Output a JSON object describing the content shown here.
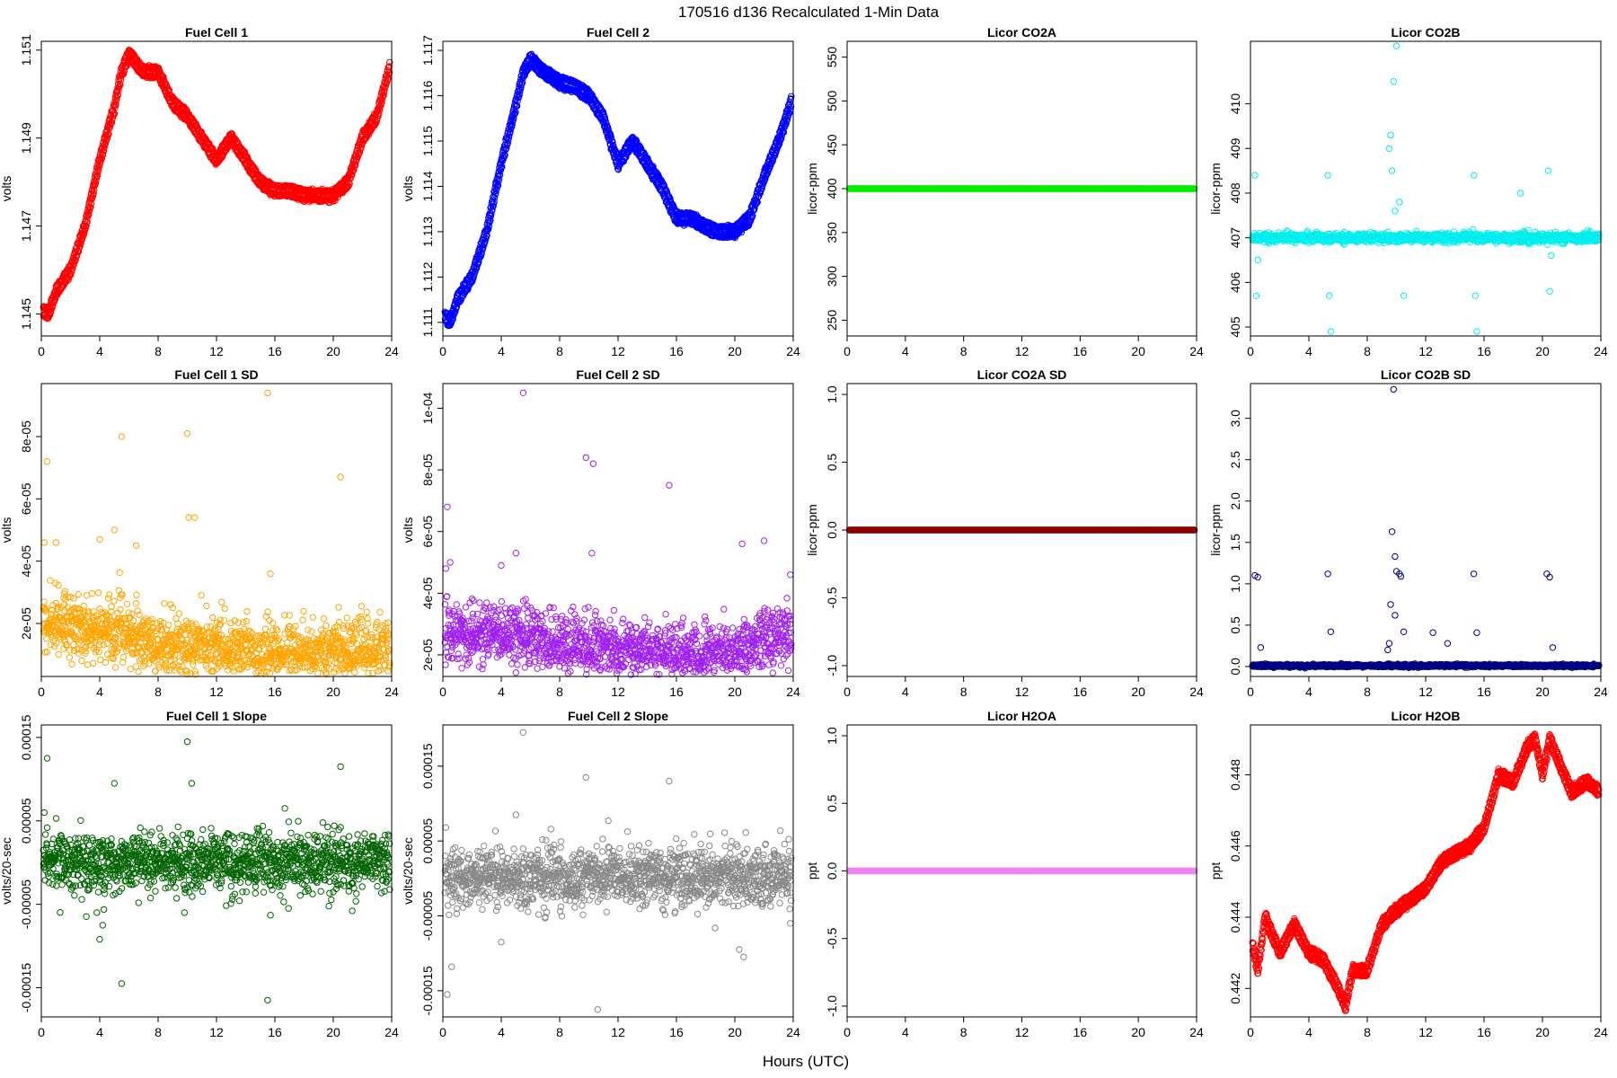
{
  "figure": {
    "title": "170516   d136   Recalculated 1-Min Data",
    "xlabel": "Hours (UTC)"
  },
  "chart_data": [
    {
      "type": "scatter",
      "title": "Fuel Cell 1",
      "ylabel": "volts",
      "color": "#ff0000",
      "xlim": [
        0,
        24
      ],
      "ylim": [
        1.1445,
        1.1512
      ],
      "xticks": [
        0,
        4,
        8,
        12,
        16,
        20,
        24
      ],
      "yticks": [
        1.145,
        1.147,
        1.149,
        1.151
      ],
      "ytick_labels": [
        "1.145",
        "1.147",
        "1.149",
        "1.151"
      ],
      "pattern": "curve",
      "band": 0.00012,
      "x": [
        0,
        0.5,
        1,
        2,
        3,
        4,
        5,
        5.5,
        6,
        7,
        8,
        9,
        10,
        11,
        12,
        13,
        14,
        15,
        16,
        17,
        18,
        19,
        20,
        21,
        22,
        23,
        24
      ],
      "y": [
        1.1451,
        1.145,
        1.1455,
        1.146,
        1.147,
        1.1485,
        1.1497,
        1.1505,
        1.1509,
        1.1505,
        1.1505,
        1.1498,
        1.1495,
        1.149,
        1.1485,
        1.149,
        1.1485,
        1.148,
        1.1478,
        1.1478,
        1.1477,
        1.1477,
        1.1477,
        1.148,
        1.149,
        1.1495,
        1.1508
      ]
    },
    {
      "type": "scatter",
      "title": "Fuel Cell 2",
      "ylabel": "volts",
      "color": "#0000ff",
      "xlim": [
        0,
        24
      ],
      "ylim": [
        1.1107,
        1.1172
      ],
      "xticks": [
        0,
        4,
        8,
        12,
        16,
        20,
        24
      ],
      "yticks": [
        1.111,
        1.112,
        1.113,
        1.114,
        1.115,
        1.116,
        1.117
      ],
      "ytick_labels": [
        "1.111",
        "1.112",
        "1.113",
        "1.114",
        "1.115",
        "1.116",
        "1.117"
      ],
      "pattern": "curve",
      "band": 0.00012,
      "x": [
        0,
        0.5,
        1,
        2,
        3,
        4,
        5,
        5.5,
        6,
        7,
        8,
        9,
        10,
        11,
        12,
        13,
        14,
        15,
        16,
        17,
        18,
        19,
        20,
        21,
        22,
        23,
        24
      ],
      "y": [
        1.1112,
        1.111,
        1.1115,
        1.112,
        1.113,
        1.1145,
        1.1158,
        1.1165,
        1.1168,
        1.1165,
        1.1163,
        1.1162,
        1.116,
        1.1155,
        1.1145,
        1.115,
        1.1145,
        1.114,
        1.1133,
        1.1133,
        1.1131,
        1.113,
        1.113,
        1.1133,
        1.1142,
        1.115,
        1.116
      ]
    },
    {
      "type": "scatter",
      "title": "Licor CO2A",
      "ylabel": "licor-ppm",
      "color": "#00ee00",
      "xlim": [
        0,
        24
      ],
      "ylim": [
        232,
        568
      ],
      "xticks": [
        0,
        4,
        8,
        12,
        16,
        20,
        24
      ],
      "yticks": [
        250,
        300,
        350,
        400,
        450,
        500,
        550
      ],
      "ytick_labels": [
        "250",
        "300",
        "350",
        "400",
        "450",
        "500",
        "550"
      ],
      "pattern": "flat",
      "band": 0,
      "x": [
        0,
        24
      ],
      "y": [
        400,
        400
      ]
    },
    {
      "type": "scatter",
      "title": "Licor CO2B",
      "ylabel": "licor-ppm",
      "color": "#00eeee",
      "xlim": [
        0,
        24
      ],
      "ylim": [
        404.8,
        411.4
      ],
      "xticks": [
        0,
        4,
        8,
        12,
        16,
        20,
        24
      ],
      "yticks": [
        405,
        406,
        407,
        408,
        409,
        410
      ],
      "ytick_labels": [
        "405",
        "406",
        "407",
        "408",
        "409",
        "410"
      ],
      "pattern": "noise",
      "center": 407.0,
      "noise_sd": 0.05,
      "outliers_x": [
        0.3,
        0.4,
        0.5,
        5.3,
        5.4,
        5.5,
        9.5,
        9.6,
        9.8,
        10.0,
        10.2,
        10.5,
        15.3,
        15.4,
        15.5,
        18.5,
        20.4,
        20.5,
        20.6,
        9.7,
        9.9
      ],
      "outliers_y": [
        408.4,
        405.7,
        406.5,
        408.4,
        405.7,
        404.9,
        409.0,
        409.3,
        410.5,
        411.3,
        407.8,
        405.7,
        408.4,
        405.7,
        404.9,
        408.0,
        408.5,
        405.8,
        406.6,
        408.5,
        407.6
      ]
    },
    {
      "type": "scatter",
      "title": "Fuel Cell 1 SD",
      "ylabel": "volts",
      "color": "#ffa500",
      "xlim": [
        0,
        24
      ],
      "ylim": [
        3e-06,
        9.7e-05
      ],
      "xticks": [
        0,
        4,
        8,
        12,
        16,
        20,
        24
      ],
      "yticks": [
        2e-05,
        4e-05,
        6e-05,
        8e-05
      ],
      "ytick_labels": [
        "2e-05",
        "4e-05",
        "6e-05",
        "8e-05"
      ],
      "pattern": "trendnoise",
      "trend_x": [
        0,
        2,
        4,
        6,
        8,
        12,
        16,
        20,
        24
      ],
      "trend_y": [
        2e-05,
        1.9e-05,
        1.8e-05,
        1.6e-05,
        1.2e-05,
        1.2e-05,
        1.1e-05,
        1.1e-05,
        1.2e-05
      ],
      "noise_sd": 5e-06,
      "outliers_x": [
        0.4,
        0.2,
        1.0,
        4.0,
        5.0,
        5.5,
        10.0,
        10.1,
        10.5,
        15.5,
        15.7,
        20.5,
        6.5
      ],
      "outliers_y": [
        7.2e-05,
        4.6e-05,
        4.6e-05,
        4.7e-05,
        5e-05,
        8e-05,
        8.1e-05,
        5.4e-05,
        5.4e-05,
        9.4e-05,
        3.6e-05,
        6.7e-05,
        4.5e-05
      ]
    },
    {
      "type": "scatter",
      "title": "Fuel Cell 2 SD",
      "ylabel": "volts",
      "color": "#a020f0",
      "xlim": [
        0,
        24
      ],
      "ylim": [
        1.3e-05,
        0.000108
      ],
      "xticks": [
        0,
        4,
        8,
        12,
        16,
        20,
        24
      ],
      "yticks": [
        2e-05,
        4e-05,
        6e-05,
        8e-05,
        0.0001
      ],
      "ytick_labels": [
        "2e-05",
        "4e-05",
        "6e-05",
        "8e-05",
        "1e-04"
      ],
      "pattern": "trendnoise",
      "trend_x": [
        0,
        2,
        4,
        6,
        8,
        12,
        16,
        20,
        22,
        24
      ],
      "trend_y": [
        2.7e-05,
        2.6e-05,
        2.8e-05,
        2.6e-05,
        2.4e-05,
        2.2e-05,
        2e-05,
        2.1e-05,
        2.4e-05,
        2.8e-05
      ],
      "noise_sd": 5e-06,
      "outliers_x": [
        0.3,
        0.5,
        0.2,
        4.0,
        5.0,
        5.5,
        9.8,
        10.3,
        15.5,
        20.5,
        22.0,
        23.8,
        10.2
      ],
      "outliers_y": [
        6.8e-05,
        5e-05,
        4.8e-05,
        4.9e-05,
        5.3e-05,
        0.000105,
        8.4e-05,
        8.2e-05,
        7.5e-05,
        5.6e-05,
        5.7e-05,
        4.6e-05,
        5.3e-05
      ]
    },
    {
      "type": "scatter",
      "title": "Licor CO2A SD",
      "ylabel": "licor-ppm",
      "color": "#8b0000",
      "xlim": [
        0,
        24
      ],
      "ylim": [
        -1.08,
        1.08
      ],
      "xticks": [
        0,
        4,
        8,
        12,
        16,
        20,
        24
      ],
      "yticks": [
        -1.0,
        -0.5,
        0.0,
        0.5,
        1.0
      ],
      "ytick_labels": [
        "-1.0",
        "-0.5",
        "0.0",
        "0.5",
        "1.0"
      ],
      "pattern": "flat",
      "band": 0,
      "x": [
        0,
        24
      ],
      "y": [
        0,
        0
      ]
    },
    {
      "type": "scatter",
      "title": "Licor CO2B SD",
      "ylabel": "licor-ppm",
      "color": "#000080",
      "xlim": [
        0,
        24
      ],
      "ylim": [
        -0.12,
        3.42
      ],
      "xticks": [
        0,
        4,
        8,
        12,
        16,
        20,
        24
      ],
      "yticks": [
        0.0,
        0.5,
        1.0,
        1.5,
        2.0,
        2.5,
        3.0
      ],
      "ytick_labels": [
        "0.0",
        "0.5",
        "1.0",
        "1.5",
        "2.0",
        "2.5",
        "3.0"
      ],
      "pattern": "noise",
      "center": 0.01,
      "noise_sd": 0.008,
      "outliers_x": [
        0.3,
        0.5,
        0.7,
        5.3,
        5.5,
        9.8,
        9.7,
        9.9,
        10.0,
        10.2,
        10.3,
        10.5,
        9.6,
        9.9,
        12.5,
        13.5,
        15.3,
        15.5,
        20.3,
        20.5,
        20.7,
        9.5,
        9.4
      ],
      "outliers_y": [
        1.1,
        1.08,
        0.23,
        1.12,
        0.42,
        3.35,
        1.63,
        1.33,
        1.15,
        1.12,
        1.09,
        0.42,
        0.75,
        0.62,
        0.41,
        0.28,
        1.12,
        0.41,
        1.12,
        1.08,
        0.23,
        0.28,
        0.2
      ]
    },
    {
      "type": "scatter",
      "title": "Fuel Cell 1 Slope",
      "ylabel": "volts/20-sec",
      "color": "#006400",
      "xlim": [
        0,
        24
      ],
      "ylim": [
        -0.000185,
        0.000165
      ],
      "xticks": [
        0,
        4,
        8,
        12,
        16,
        20,
        24
      ],
      "yticks": [
        -0.00015,
        -5e-05,
        5e-05,
        0.00015
      ],
      "ytick_labels": [
        "-0.00015",
        "-0.00005",
        "0.00005",
        "0.00015"
      ],
      "pattern": "trendnoise",
      "trend_x": [
        0,
        8,
        16,
        24
      ],
      "trend_y": [
        3e-06,
        0.0,
        0.0,
        3e-06
      ],
      "noise_sd": 1.8e-05,
      "outliers_x": [
        0.4,
        0.2,
        4.0,
        5.0,
        5.5,
        10.0,
        10.3,
        9.8,
        15.5,
        15.7,
        20.5,
        4.2,
        3.8
      ],
      "outliers_y": [
        0.000125,
        6e-05,
        -9.2e-05,
        9.5e-05,
        -0.000145,
        0.000145,
        9.5e-05,
        -6e-05,
        -0.000165,
        -6.3e-05,
        0.000115,
        -7.5e-05,
        -6e-05
      ]
    },
    {
      "type": "scatter",
      "title": "Fuel Cell 2 Slope",
      "ylabel": "volts/20-sec",
      "color": "#888888",
      "xlim": [
        0,
        24
      ],
      "ylim": [
        -0.000185,
        0.000205
      ],
      "xticks": [
        0,
        4,
        8,
        12,
        16,
        20,
        24
      ],
      "yticks": [
        -0.00015,
        -5e-05,
        5e-05,
        0.00015
      ],
      "ytick_labels": [
        "-0.00015",
        "-0.00005",
        "0.00005",
        "0.00015"
      ],
      "pattern": "trendnoise",
      "trend_x": [
        0,
        8,
        16,
        24
      ],
      "trend_y": [
        3e-06,
        0.0,
        0.0,
        3e-06
      ],
      "noise_sd": 2e-05,
      "outliers_x": [
        0.2,
        0.6,
        0.3,
        4.0,
        5.0,
        5.5,
        9.8,
        10.6,
        15.5,
        20.3,
        20.6,
        23.8
      ],
      "outliers_y": [
        6.8e-05,
        -0.000118,
        -0.000155,
        -8.5e-05,
        8.5e-05,
        0.000195,
        0.000135,
        -0.000175,
        0.00013,
        -9.5e-05,
        -0.000105,
        -6e-05
      ]
    },
    {
      "type": "scatter",
      "title": "Licor H2OA",
      "ylabel": "ppt",
      "color": "#ee82ee",
      "xlim": [
        0,
        24
      ],
      "ylim": [
        -1.08,
        1.08
      ],
      "xticks": [
        0,
        4,
        8,
        12,
        16,
        20,
        24
      ],
      "yticks": [
        -1.0,
        -0.5,
        0.0,
        0.5,
        1.0
      ],
      "ytick_labels": [
        "-1.0",
        "-0.5",
        "0.0",
        "0.5",
        "1.0"
      ],
      "pattern": "flat",
      "band": 0,
      "x": [
        0,
        24
      ],
      "y": [
        0,
        0
      ]
    },
    {
      "type": "scatter",
      "title": "Licor H2OB",
      "ylabel": "ppt",
      "color": "#ff0000",
      "xlim": [
        0,
        24
      ],
      "ylim": [
        0.4412,
        0.4494
      ],
      "xticks": [
        0,
        4,
        8,
        12,
        16,
        20,
        24
      ],
      "yticks": [
        0.442,
        0.444,
        0.446,
        0.448
      ],
      "ytick_labels": [
        "0.442",
        "0.444",
        "0.446",
        "0.448"
      ],
      "pattern": "curve",
      "band": 0.00015,
      "x": [
        0,
        0.5,
        1,
        2,
        3,
        4,
        5,
        6,
        6.5,
        7,
        8,
        9,
        10,
        11,
        12,
        13,
        14,
        15,
        16,
        17,
        18,
        19,
        19.5,
        20,
        20.5,
        21,
        22,
        23,
        24
      ],
      "y": [
        0.4435,
        0.4425,
        0.444,
        0.443,
        0.4438,
        0.443,
        0.4428,
        0.442,
        0.4415,
        0.4425,
        0.4425,
        0.4438,
        0.4442,
        0.4445,
        0.4448,
        0.4455,
        0.4458,
        0.446,
        0.4465,
        0.448,
        0.4478,
        0.4488,
        0.449,
        0.448,
        0.449,
        0.4485,
        0.4475,
        0.4478,
        0.4475
      ]
    }
  ]
}
